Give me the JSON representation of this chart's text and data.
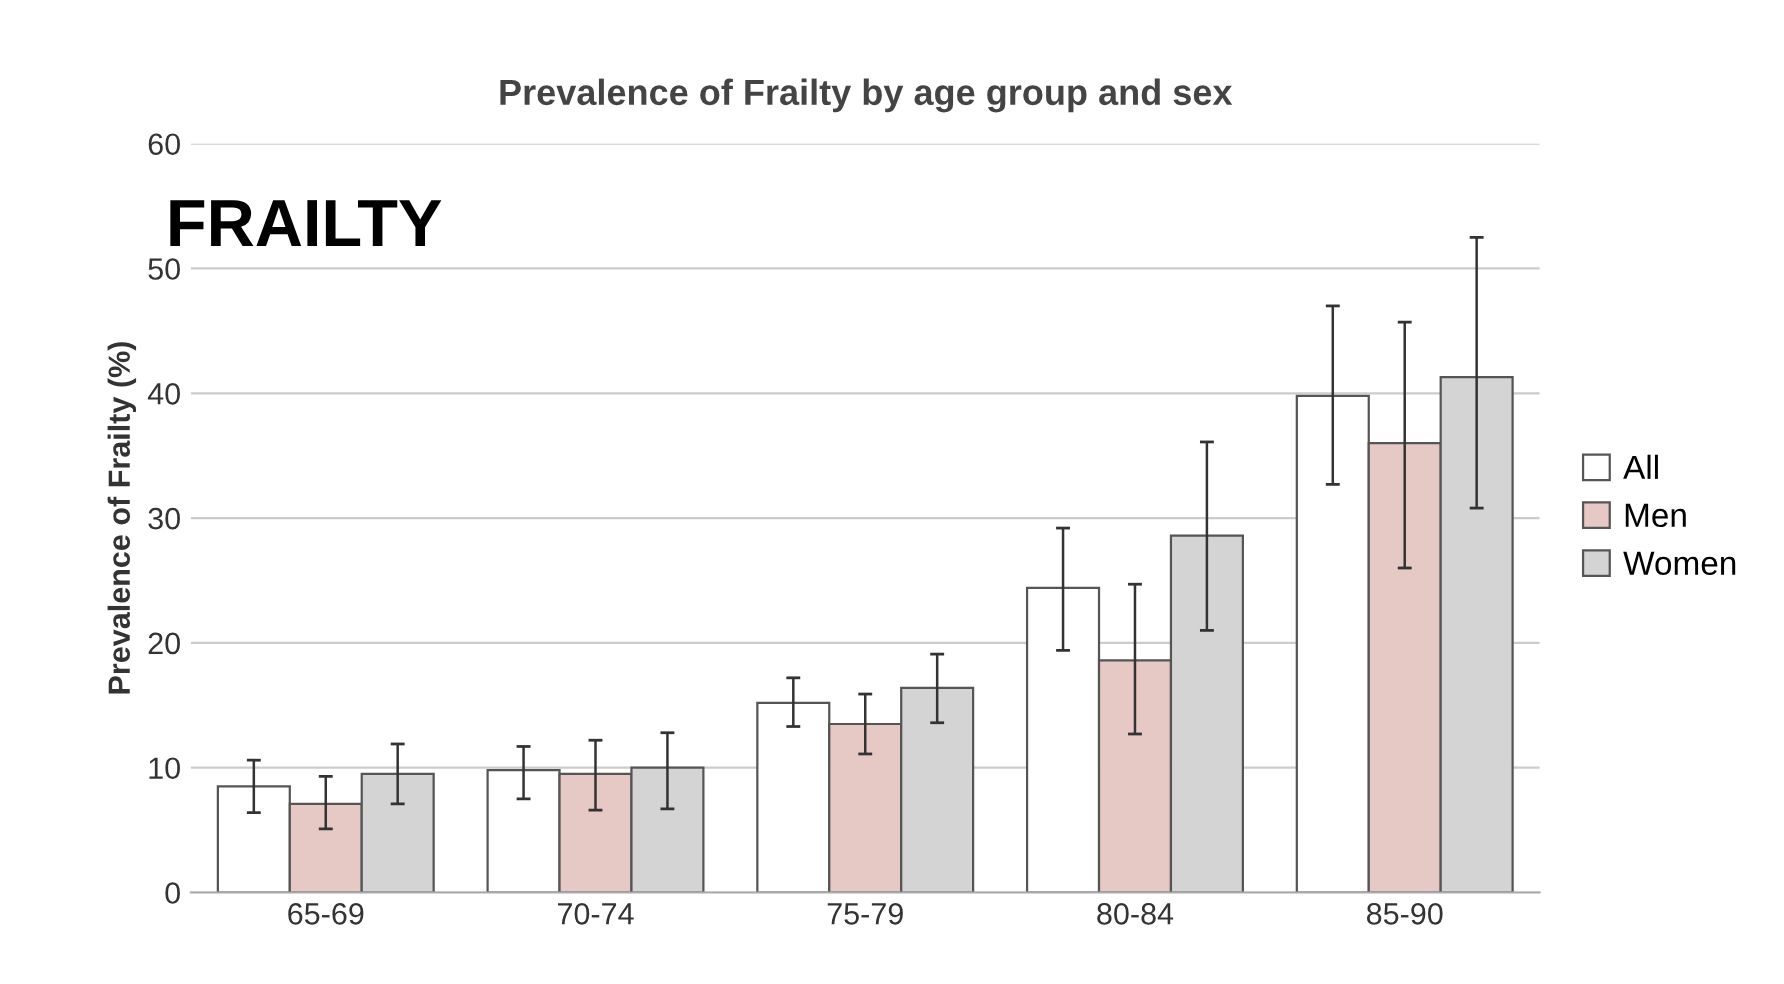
{
  "chart_data": {
    "type": "bar",
    "title": "Prevalence of Frailty by age group and sex",
    "ylabel": "Prevalence of Frailty (%)",
    "annotations": [
      "FRAILTY"
    ],
    "categories": [
      "65-69",
      "70-74",
      "75-79",
      "80-84",
      "85-90"
    ],
    "series": [
      {
        "name": "All",
        "color": "#ffffff",
        "values": [
          8.5,
          9.8,
          15.2,
          24.4,
          39.8
        ],
        "errors": [
          [
            6.4,
            10.6
          ],
          [
            7.5,
            11.7
          ],
          [
            13.3,
            17.2
          ],
          [
            19.4,
            29.2
          ],
          [
            32.7,
            47.0
          ]
        ]
      },
      {
        "name": "Men",
        "color": "#e6c8c5",
        "values": [
          7.1,
          9.5,
          13.5,
          18.6,
          36.0
        ],
        "errors": [
          [
            5.1,
            9.3
          ],
          [
            6.6,
            12.2
          ],
          [
            11.1,
            15.9
          ],
          [
            12.7,
            24.7
          ],
          [
            26.0,
            45.7
          ]
        ]
      },
      {
        "name": "Women",
        "color": "#d4d4d4",
        "values": [
          9.5,
          10.0,
          16.4,
          28.6,
          41.3
        ],
        "errors": [
          [
            7.1,
            11.9
          ],
          [
            6.7,
            12.8
          ],
          [
            13.6,
            19.1
          ],
          [
            21.0,
            36.1
          ],
          [
            30.8,
            52.5
          ]
        ]
      }
    ],
    "ylim": [
      0,
      60
    ],
    "yticks": [
      0,
      10,
      20,
      30,
      40,
      50,
      60
    ],
    "grid": "y",
    "legend": "right"
  }
}
